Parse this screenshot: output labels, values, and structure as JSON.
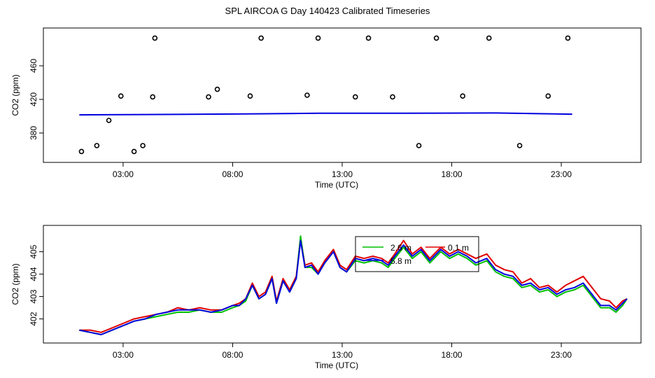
{
  "title": "SPL AIRCOA G  Day 140423  Calibrated Timeseries",
  "colors": {
    "red": "#e00000",
    "green": "#00c000",
    "blue": "#0000e0",
    "axis": "#000000"
  },
  "chart_data": [
    {
      "type": "scatter",
      "xlabel": "Time (UTC)",
      "ylabel": "CO2 (ppm)",
      "xticks": [
        "03:00",
        "08:00",
        "13:00",
        "18:00",
        "23:00"
      ],
      "xtick_hours": [
        3,
        8,
        13,
        18,
        23
      ],
      "yticks": [
        "380",
        "420",
        "460"
      ],
      "ytick_values": [
        380,
        420,
        460
      ],
      "xlim": [
        0,
        26
      ],
      "ylim": [
        355,
        495
      ],
      "points_hours": [
        [
          1.1,
          358
        ],
        [
          1.8,
          365
        ],
        [
          2.35,
          395
        ],
        [
          2.9,
          424
        ],
        [
          3.5,
          358
        ],
        [
          3.9,
          365
        ],
        [
          4.35,
          423
        ],
        [
          4.45,
          493
        ],
        [
          6.9,
          423
        ],
        [
          7.3,
          432
        ],
        [
          8.8,
          424
        ],
        [
          9.3,
          493
        ],
        [
          11.4,
          425
        ],
        [
          11.9,
          493
        ],
        [
          13.6,
          423
        ],
        [
          14.2,
          493
        ],
        [
          15.3,
          423
        ],
        [
          16.5,
          365
        ],
        [
          17.3,
          493
        ],
        [
          18.5,
          424
        ],
        [
          19.7,
          493
        ],
        [
          21.1,
          365
        ],
        [
          22.4,
          424
        ],
        [
          23.3,
          493
        ]
      ],
      "series": [
        {
          "name": "",
          "color": "blue",
          "values": [
            [
              1.0,
              401.6
            ],
            [
              4.0,
              402.0
            ],
            [
              8.0,
              402.6
            ],
            [
              12.0,
              403.5
            ],
            [
              16.0,
              403.6
            ],
            [
              20.0,
              403.8
            ],
            [
              23.5,
              402.4
            ]
          ]
        }
      ]
    },
    {
      "type": "line",
      "xlabel": "Time (UTC)",
      "ylabel": "CO2 (ppm)",
      "xticks": [
        "03:00",
        "08:00",
        "13:00",
        "18:00",
        "23:00"
      ],
      "xtick_hours": [
        3,
        8,
        13,
        18,
        23
      ],
      "yticks": [
        "402",
        "403",
        "404",
        "405"
      ],
      "ytick_values": [
        402,
        403,
        404,
        405
      ],
      "xlim": [
        0,
        26
      ],
      "ylim": [
        401.3,
        405.8
      ],
      "legend": {
        "location": "top-center",
        "entries": [
          "2.6 m",
          "0.1 m",
          "5.8 m"
        ]
      },
      "series": [
        {
          "name": "0.1 m",
          "color": "red",
          "values": [
            [
              1.0,
              401.5
            ],
            [
              1.5,
              401.5
            ],
            [
              2.0,
              401.4
            ],
            [
              2.5,
              401.6
            ],
            [
              3.0,
              401.8
            ],
            [
              3.5,
              402.0
            ],
            [
              4.0,
              402.1
            ],
            [
              4.5,
              402.2
            ],
            [
              5.0,
              402.3
            ],
            [
              5.5,
              402.5
            ],
            [
              6.0,
              402.4
            ],
            [
              6.5,
              402.5
            ],
            [
              7.0,
              402.4
            ],
            [
              7.5,
              402.4
            ],
            [
              8.0,
              402.6
            ],
            [
              8.3,
              402.7
            ],
            [
              8.6,
              402.9
            ],
            [
              8.9,
              403.6
            ],
            [
              9.2,
              403.0
            ],
            [
              9.5,
              403.2
            ],
            [
              9.8,
              403.9
            ],
            [
              10.0,
              402.8
            ],
            [
              10.3,
              403.8
            ],
            [
              10.6,
              403.3
            ],
            [
              10.9,
              403.9
            ],
            [
              11.1,
              405.6
            ],
            [
              11.3,
              404.4
            ],
            [
              11.6,
              404.5
            ],
            [
              11.9,
              404.1
            ],
            [
              12.2,
              404.6
            ],
            [
              12.6,
              405.1
            ],
            [
              12.9,
              404.4
            ],
            [
              13.2,
              404.2
            ],
            [
              13.6,
              404.8
            ],
            [
              14.0,
              404.7
            ],
            [
              14.4,
              404.8
            ],
            [
              14.8,
              404.7
            ],
            [
              15.1,
              404.5
            ],
            [
              15.4,
              404.9
            ],
            [
              15.8,
              405.5
            ],
            [
              16.2,
              404.9
            ],
            [
              16.6,
              405.2
            ],
            [
              17.0,
              404.7
            ],
            [
              17.5,
              405.2
            ],
            [
              17.9,
              404.9
            ],
            [
              18.3,
              405.1
            ],
            [
              18.7,
              404.9
            ],
            [
              19.1,
              404.7
            ],
            [
              19.6,
              404.9
            ],
            [
              20.0,
              404.4
            ],
            [
              20.4,
              404.2
            ],
            [
              20.8,
              404.1
            ],
            [
              21.2,
              403.6
            ],
            [
              21.6,
              403.8
            ],
            [
              22.0,
              403.4
            ],
            [
              22.4,
              403.5
            ],
            [
              22.8,
              403.2
            ],
            [
              23.2,
              403.5
            ],
            [
              23.6,
              403.7
            ],
            [
              24.0,
              403.9
            ],
            [
              24.4,
              403.4
            ],
            [
              24.8,
              402.9
            ],
            [
              25.2,
              402.8
            ],
            [
              25.5,
              402.5
            ],
            [
              25.8,
              402.8
            ],
            [
              26.0,
              402.9
            ]
          ]
        },
        {
          "name": "2.6 m",
          "color": "green",
          "values": [
            [
              1.0,
              401.5
            ],
            [
              1.5,
              401.4
            ],
            [
              2.0,
              401.3
            ],
            [
              2.5,
              401.5
            ],
            [
              3.0,
              401.7
            ],
            [
              3.5,
              401.9
            ],
            [
              4.0,
              402.0
            ],
            [
              4.5,
              402.1
            ],
            [
              5.0,
              402.2
            ],
            [
              5.5,
              402.3
            ],
            [
              6.0,
              402.3
            ],
            [
              6.5,
              402.4
            ],
            [
              7.0,
              402.3
            ],
            [
              7.5,
              402.3
            ],
            [
              8.0,
              402.5
            ],
            [
              8.3,
              402.6
            ],
            [
              8.6,
              402.8
            ],
            [
              8.9,
              403.5
            ],
            [
              9.2,
              402.9
            ],
            [
              9.5,
              403.1
            ],
            [
              9.8,
              403.8
            ],
            [
              10.0,
              402.7
            ],
            [
              10.3,
              403.7
            ],
            [
              10.6,
              403.2
            ],
            [
              10.9,
              403.8
            ],
            [
              11.1,
              405.7
            ],
            [
              11.3,
              404.3
            ],
            [
              11.6,
              404.3
            ],
            [
              11.9,
              404.0
            ],
            [
              12.2,
              404.5
            ],
            [
              12.6,
              405.0
            ],
            [
              12.9,
              404.3
            ],
            [
              13.2,
              404.1
            ],
            [
              13.6,
              404.6
            ],
            [
              14.0,
              404.5
            ],
            [
              14.4,
              404.6
            ],
            [
              14.8,
              404.5
            ],
            [
              15.1,
              404.3
            ],
            [
              15.4,
              404.7
            ],
            [
              15.8,
              405.2
            ],
            [
              16.2,
              404.7
            ],
            [
              16.6,
              405.0
            ],
            [
              17.0,
              404.5
            ],
            [
              17.5,
              405.0
            ],
            [
              17.9,
              404.7
            ],
            [
              18.3,
              404.9
            ],
            [
              18.7,
              404.7
            ],
            [
              19.1,
              404.4
            ],
            [
              19.6,
              404.6
            ],
            [
              20.0,
              404.1
            ],
            [
              20.4,
              403.9
            ],
            [
              20.8,
              403.8
            ],
            [
              21.2,
              403.4
            ],
            [
              21.6,
              403.5
            ],
            [
              22.0,
              403.2
            ],
            [
              22.4,
              403.3
            ],
            [
              22.8,
              403.0
            ],
            [
              23.2,
              403.2
            ],
            [
              23.6,
              403.3
            ],
            [
              24.0,
              403.5
            ],
            [
              24.4,
              403.0
            ],
            [
              24.8,
              402.5
            ],
            [
              25.2,
              402.5
            ],
            [
              25.5,
              402.3
            ],
            [
              25.8,
              402.6
            ],
            [
              26.0,
              402.9
            ]
          ]
        },
        {
          "name": "5.8 m",
          "color": "blue",
          "values": [
            [
              1.0,
              401.5
            ],
            [
              1.5,
              401.4
            ],
            [
              2.0,
              401.3
            ],
            [
              2.5,
              401.5
            ],
            [
              3.0,
              401.7
            ],
            [
              3.5,
              401.9
            ],
            [
              4.0,
              402.0
            ],
            [
              4.5,
              402.2
            ],
            [
              5.0,
              402.3
            ],
            [
              5.5,
              402.4
            ],
            [
              6.0,
              402.4
            ],
            [
              6.5,
              402.4
            ],
            [
              7.0,
              402.3
            ],
            [
              7.5,
              402.4
            ],
            [
              8.0,
              402.6
            ],
            [
              8.3,
              402.6
            ],
            [
              8.6,
              402.9
            ],
            [
              8.9,
              403.5
            ],
            [
              9.2,
              402.9
            ],
            [
              9.5,
              403.1
            ],
            [
              9.8,
              403.8
            ],
            [
              10.0,
              402.7
            ],
            [
              10.3,
              403.7
            ],
            [
              10.6,
              403.2
            ],
            [
              10.9,
              403.8
            ],
            [
              11.1,
              405.5
            ],
            [
              11.3,
              404.3
            ],
            [
              11.6,
              404.4
            ],
            [
              11.9,
              404.0
            ],
            [
              12.2,
              404.5
            ],
            [
              12.6,
              405.0
            ],
            [
              12.9,
              404.3
            ],
            [
              13.2,
              404.1
            ],
            [
              13.6,
              404.7
            ],
            [
              14.0,
              404.6
            ],
            [
              14.4,
              404.7
            ],
            [
              14.8,
              404.6
            ],
            [
              15.1,
              404.4
            ],
            [
              15.4,
              404.8
            ],
            [
              15.8,
              405.3
            ],
            [
              16.2,
              404.8
            ],
            [
              16.6,
              405.1
            ],
            [
              17.0,
              404.6
            ],
            [
              17.5,
              405.1
            ],
            [
              17.9,
              404.8
            ],
            [
              18.3,
              405.0
            ],
            [
              18.7,
              404.8
            ],
            [
              19.1,
              404.5
            ],
            [
              19.6,
              404.7
            ],
            [
              20.0,
              404.2
            ],
            [
              20.4,
              404.0
            ],
            [
              20.8,
              403.9
            ],
            [
              21.2,
              403.5
            ],
            [
              21.6,
              403.6
            ],
            [
              22.0,
              403.3
            ],
            [
              22.4,
              403.4
            ],
            [
              22.8,
              403.1
            ],
            [
              23.2,
              403.3
            ],
            [
              23.6,
              403.4
            ],
            [
              24.0,
              403.6
            ],
            [
              24.4,
              403.1
            ],
            [
              24.8,
              402.6
            ],
            [
              25.2,
              402.6
            ],
            [
              25.5,
              402.4
            ],
            [
              25.8,
              402.7
            ],
            [
              26.0,
              402.9
            ]
          ]
        }
      ]
    }
  ]
}
